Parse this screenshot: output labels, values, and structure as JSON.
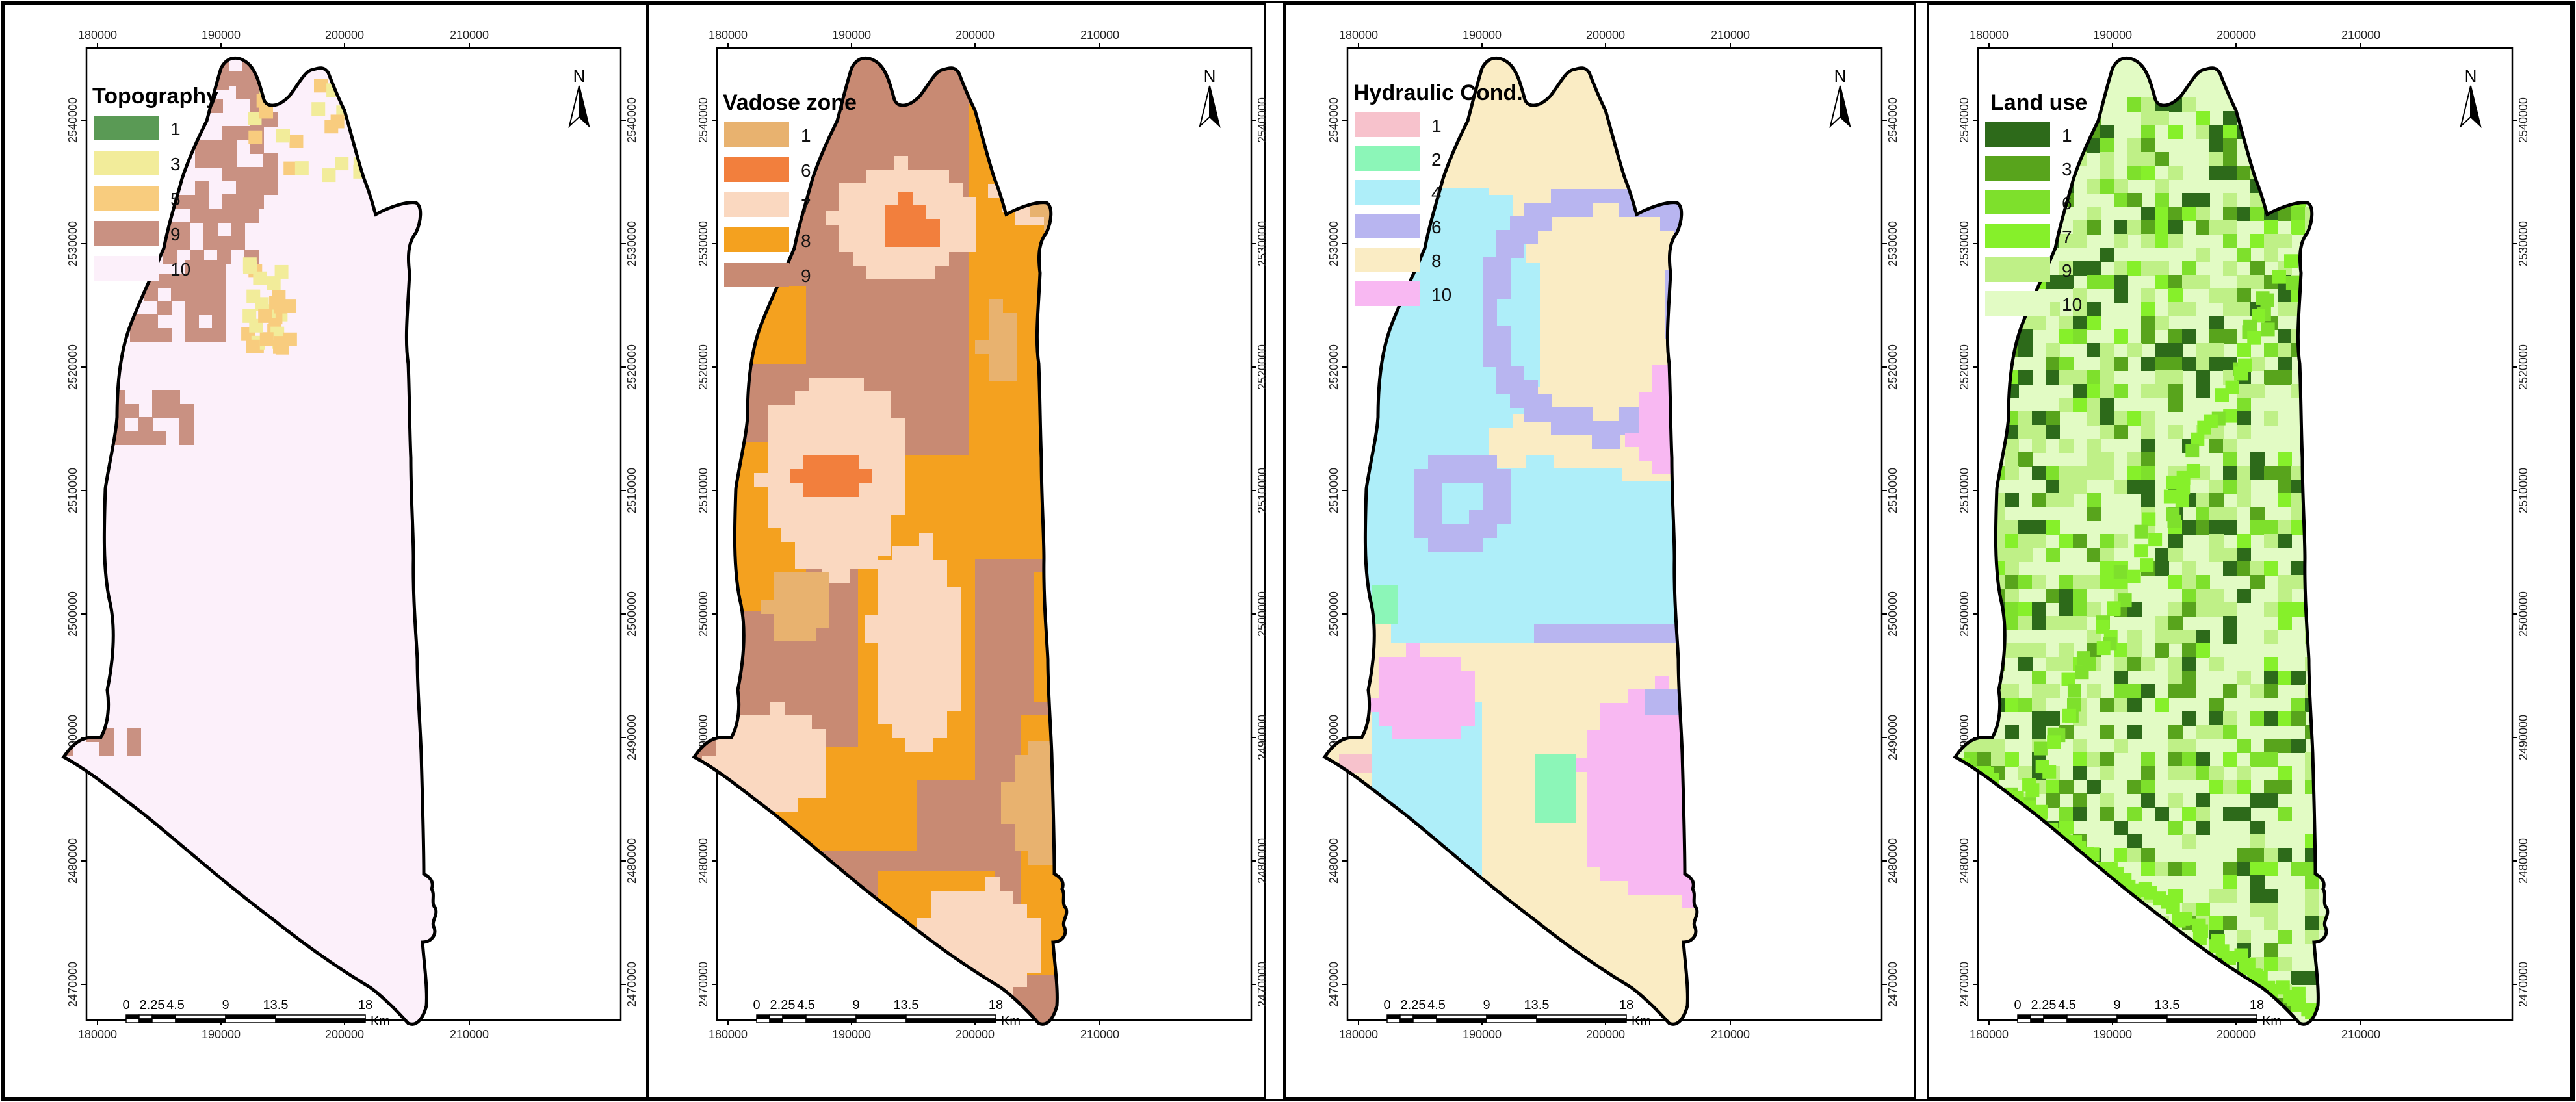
{
  "palette": {
    "topo": {
      "1": "#5a9a55",
      "3": "#f2ec9a",
      "5": "#f8cc7e",
      "9": "#c99182",
      "10": "#fcf0fa"
    },
    "vadose": {
      "1": "#e8b26f",
      "6": "#f27f3d",
      "7": "#fad8c0",
      "8": "#f4a11f",
      "9": "#c88a73"
    },
    "hydro": {
      "1": "#f7c2cc",
      "2": "#8cf6b8",
      "4": "#aeeef9",
      "6": "#b8b5f0",
      "8": "#faecc4",
      "10": "#f8b8f2"
    },
    "land": {
      "1": "#2d6a1a",
      "3": "#58a41c",
      "6": "#7ee02c",
      "7": "#86f02a",
      "9": "#bff087",
      "10": "#e2fbc4"
    }
  },
  "x_ticks": [
    "180000",
    "190000",
    "200000",
    "210000"
  ],
  "y_ticks": [
    "2540000",
    "2530000",
    "2520000",
    "2510000",
    "2500000",
    "2490000",
    "2480000",
    "2470000"
  ],
  "scalebar": {
    "labels": [
      "0",
      "2.25",
      "4.5",
      "9",
      "13.5",
      "18"
    ],
    "unit": "Km"
  },
  "north_label": "N",
  "panels": [
    {
      "title": "Topography",
      "legend": [
        {
          "label": "1",
          "color": "#5a9a55"
        },
        {
          "label": "3",
          "color": "#f2ec9a"
        },
        {
          "label": "5",
          "color": "#f8cc7e"
        },
        {
          "label": "9",
          "color": "#c99182"
        },
        {
          "label": "10",
          "color": "#fcf0fa"
        }
      ]
    },
    {
      "title": "Vadose zone",
      "legend": [
        {
          "label": "1",
          "color": "#e8b26f"
        },
        {
          "label": "6",
          "color": "#f27f3d"
        },
        {
          "label": "7",
          "color": "#fad8c0"
        },
        {
          "label": "8",
          "color": "#f4a11f"
        },
        {
          "label": "9",
          "color": "#c88a73"
        }
      ]
    },
    {
      "title": "Hydraulic Cond.",
      "legend": [
        {
          "label": "1",
          "color": "#f7c2cc"
        },
        {
          "label": "2",
          "color": "#8cf6b8"
        },
        {
          "label": "4",
          "color": "#aeeef9"
        },
        {
          "label": "6",
          "color": "#b8b5f0"
        },
        {
          "label": "8",
          "color": "#faecc4"
        },
        {
          "label": "10",
          "color": "#f8b8f2"
        }
      ]
    },
    {
      "title": "Land use",
      "legend": [
        {
          "label": "1",
          "color": "#2d6a1a"
        },
        {
          "label": "3",
          "color": "#58a41c"
        },
        {
          "label": "6",
          "color": "#7ee02c"
        },
        {
          "label": "7",
          "color": "#86f02a"
        },
        {
          "label": "9",
          "color": "#bff087"
        },
        {
          "label": "10",
          "color": "#e2fbc4"
        }
      ]
    }
  ]
}
